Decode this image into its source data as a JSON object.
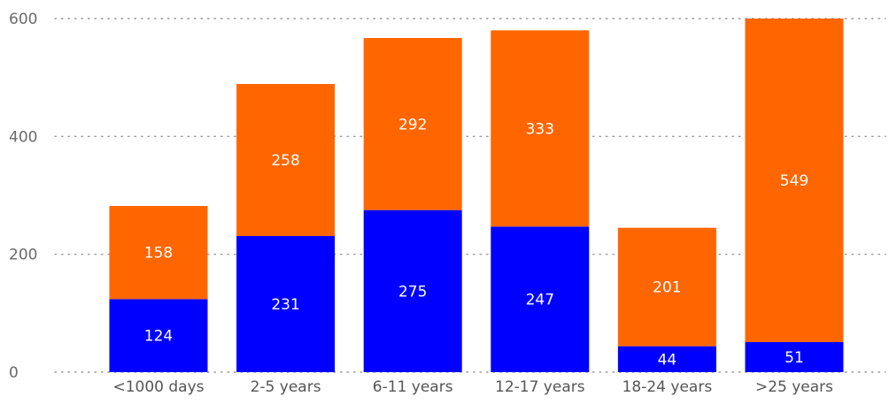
{
  "chart_data": {
    "type": "bar",
    "stacked": true,
    "title": "",
    "xlabel": "",
    "ylabel": "",
    "ylim": [
      0,
      600
    ],
    "yticks": [
      0,
      200,
      400,
      600
    ],
    "grid": true,
    "legend": "none",
    "categories": [
      "<1000 days",
      "2-5 years",
      "6-11 years",
      "12-17 years",
      "18-24 years",
      ">25 years"
    ],
    "series": [
      {
        "color": "#0000ff",
        "values": [
          124,
          231,
          275,
          247,
          44,
          51
        ]
      },
      {
        "color": "#ff6600",
        "values": [
          158,
          258,
          292,
          333,
          201,
          549
        ]
      }
    ]
  }
}
